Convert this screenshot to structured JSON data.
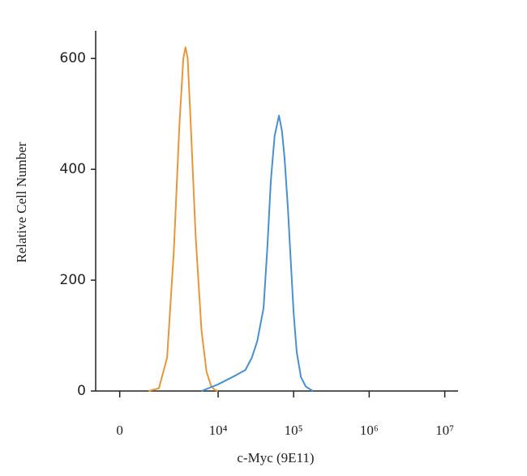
{
  "chart_data": {
    "type": "line",
    "xlabel": "c-Myc (9E11)",
    "ylabel": "Relative Cell Number",
    "xscale": "asinh",
    "xlim": [
      -800,
      15000000
    ],
    "xticks": [
      0,
      {
        "value": 10000,
        "label": "10⁴"
      },
      {
        "value": 100000,
        "label": "10⁵"
      },
      {
        "value": 1000000,
        "label": "10⁶"
      },
      {
        "value": 10000000,
        "label": "10⁷"
      }
    ],
    "ylim": [
      0,
      650
    ],
    "yticks": [
      0,
      200,
      400,
      600
    ],
    "series": [
      {
        "color": "#e8963a",
        "x": [
          1000,
          1500,
          2000,
          2500,
          3000,
          3400,
          3640,
          3900,
          4300,
          5000,
          6000,
          7000,
          8000,
          9000,
          10000
        ],
        "values": [
          0,
          5,
          60,
          250,
          480,
          600,
          620,
          600,
          480,
          280,
          110,
          35,
          10,
          2,
          0
        ]
      },
      {
        "color": "#4a90d0",
        "x": [
          6000,
          10000,
          17000,
          23000,
          28000,
          33000,
          40000,
          45000,
          50000,
          56000,
          64000,
          70000,
          76000,
          84000,
          92000,
          100000,
          110000,
          125000,
          145000,
          180000
        ],
        "values": [
          0,
          12,
          28,
          38,
          60,
          90,
          150,
          260,
          380,
          460,
          497,
          470,
          420,
          330,
          230,
          140,
          70,
          25,
          8,
          0
        ]
      }
    ]
  }
}
